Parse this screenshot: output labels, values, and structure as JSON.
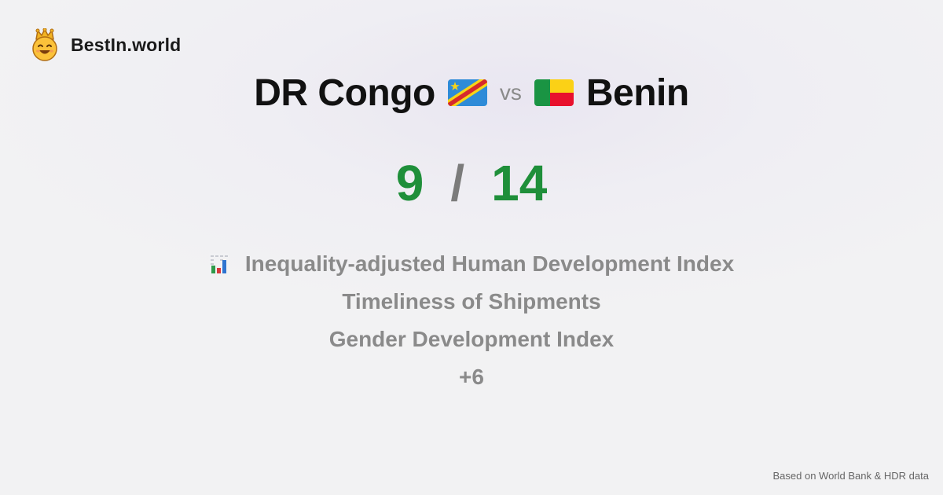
{
  "brand": {
    "name": "BestIn.world",
    "logo_icon": "crown-smiley-icon"
  },
  "headline": {
    "left_country": "DR Congo",
    "left_flag": "dr-congo-flag-icon",
    "vs": "vs",
    "right_country": "Benin",
    "right_flag": "benin-flag-icon"
  },
  "score": {
    "left": "9",
    "separator": "/",
    "right": "14"
  },
  "metrics": {
    "icon": "bar-chart-icon",
    "items": [
      "Inequality-adjusted Human Development Index",
      "Timeliness of Shipments",
      "Gender Development Index"
    ],
    "more": "+6"
  },
  "footer": {
    "source": "Based on World Bank & HDR data"
  },
  "colors": {
    "score_green": "#1f8f3a",
    "muted": "#8a8a8a",
    "text": "#111111"
  }
}
